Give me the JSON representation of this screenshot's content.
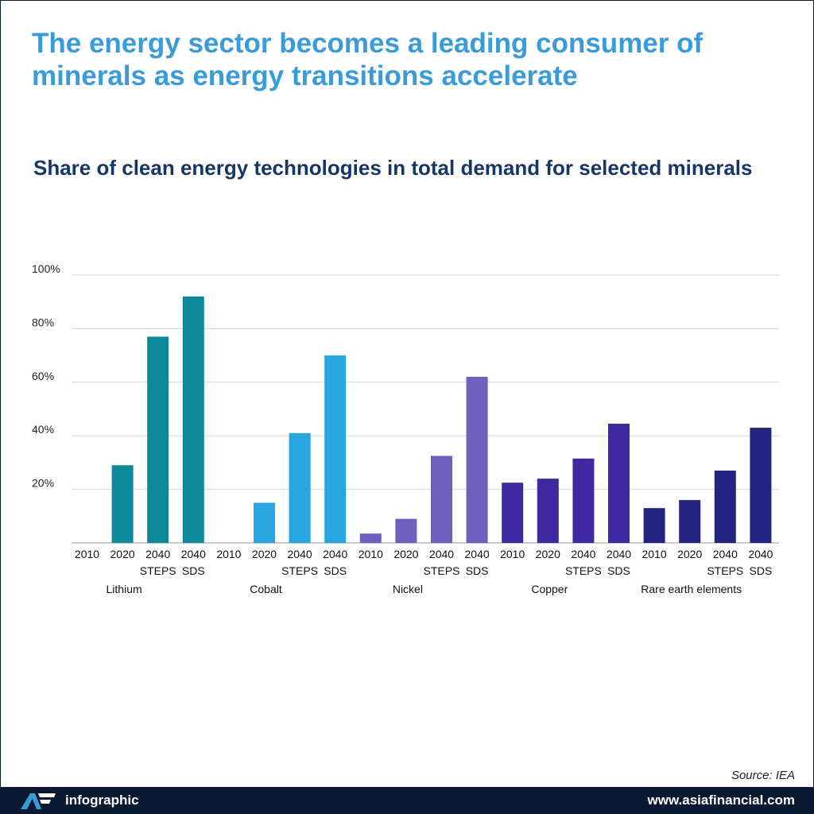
{
  "headline": "The energy sector becomes a leading consumer of minerals as energy transitions accelerate",
  "source": "Source: IEA",
  "footer": {
    "brand": "infographic",
    "website": "www.asiafinancial.com",
    "logo_icon": "af-logo-icon"
  },
  "colors": {
    "lithium": "#0d8a9a",
    "cobalt": "#29a6df",
    "nickel": "#6c5fbd",
    "copper": "#4128a3",
    "rare_earth": "#222480"
  },
  "chart_data": {
    "type": "bar",
    "title": "Share of clean energy technologies in total demand for selected minerals",
    "xlabel": "",
    "ylabel": "",
    "ylim": [
      0,
      100
    ],
    "yticks": [
      "100%",
      "80%",
      "60%",
      "40%",
      "20%"
    ],
    "ytick_values": [
      100,
      80,
      60,
      40,
      20
    ],
    "grid": true,
    "groups": [
      {
        "name": "Lithium",
        "color": "#0d8a9a",
        "bars": [
          {
            "label": "2010",
            "sublabel": "",
            "value": 0
          },
          {
            "label": "2020",
            "sublabel": "",
            "value": 29
          },
          {
            "label": "2040",
            "sublabel": "STEPS",
            "value": 77
          },
          {
            "label": "2040",
            "sublabel": "SDS",
            "value": 92
          }
        ]
      },
      {
        "name": "Cobalt",
        "color": "#29a6df",
        "bars": [
          {
            "label": "2010",
            "sublabel": "",
            "value": 0
          },
          {
            "label": "2020",
            "sublabel": "",
            "value": 15
          },
          {
            "label": "2040",
            "sublabel": "STEPS",
            "value": 41
          },
          {
            "label": "2040",
            "sublabel": "SDS",
            "value": 70
          }
        ]
      },
      {
        "name": "Nickel",
        "color": "#6c5fbd",
        "bars": [
          {
            "label": "2010",
            "sublabel": "",
            "value": 3.5
          },
          {
            "label": "2020",
            "sublabel": "",
            "value": 9
          },
          {
            "label": "2040",
            "sublabel": "STEPS",
            "value": 32.5
          },
          {
            "label": "2040",
            "sublabel": "SDS",
            "value": 62
          }
        ]
      },
      {
        "name": "Copper",
        "color": "#4128a3",
        "bars": [
          {
            "label": "2010",
            "sublabel": "",
            "value": 22.5
          },
          {
            "label": "2020",
            "sublabel": "",
            "value": 24
          },
          {
            "label": "2040",
            "sublabel": "STEPS",
            "value": 31.5
          },
          {
            "label": "2040",
            "sublabel": "SDS",
            "value": 44.5
          }
        ]
      },
      {
        "name": "Rare earth elements",
        "color": "#222480",
        "bars": [
          {
            "label": "2010",
            "sublabel": "",
            "value": 13
          },
          {
            "label": "2020",
            "sublabel": "",
            "value": 16
          },
          {
            "label": "2040",
            "sublabel": "STEPS",
            "value": 27
          },
          {
            "label": "2040",
            "sublabel": "SDS",
            "value": 43
          }
        ]
      }
    ]
  }
}
